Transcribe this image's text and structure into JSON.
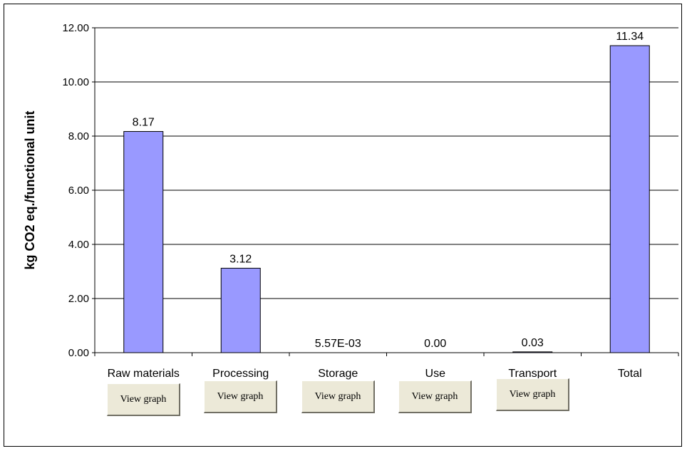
{
  "chart_data": {
    "type": "bar",
    "categories": [
      "Raw materials",
      "Processing",
      "Storage",
      "Use",
      "Transport",
      "Total"
    ],
    "values": [
      8.17,
      3.12,
      0.00557,
      0.0,
      0.03,
      11.34
    ],
    "data_labels": [
      "8.17",
      "3.12",
      "5.57E-03",
      "0.00",
      "0.03",
      "11.34"
    ],
    "title": "",
    "xlabel": "",
    "ylabel": "kg CO2 eq./functional unit",
    "ylim": [
      0,
      12
    ],
    "yticks": [
      0,
      2,
      4,
      6,
      8,
      10,
      12
    ],
    "ytick_labels": [
      "0.00",
      "2.00",
      "4.00",
      "6.00",
      "8.00",
      "10.00",
      "12.00"
    ],
    "grid": true,
    "legend": "none",
    "bar_color": "#9999ff",
    "bar_edge_color": "#000000"
  },
  "buttons": {
    "view_graph_label": "View graph",
    "items": [
      {
        "category": "Raw materials",
        "label": "View graph"
      },
      {
        "category": "Processing",
        "label": "View graph"
      },
      {
        "category": "Storage",
        "label": "View graph"
      },
      {
        "category": "Use",
        "label": "View graph"
      },
      {
        "category": "Transport",
        "label": "View graph"
      }
    ]
  }
}
